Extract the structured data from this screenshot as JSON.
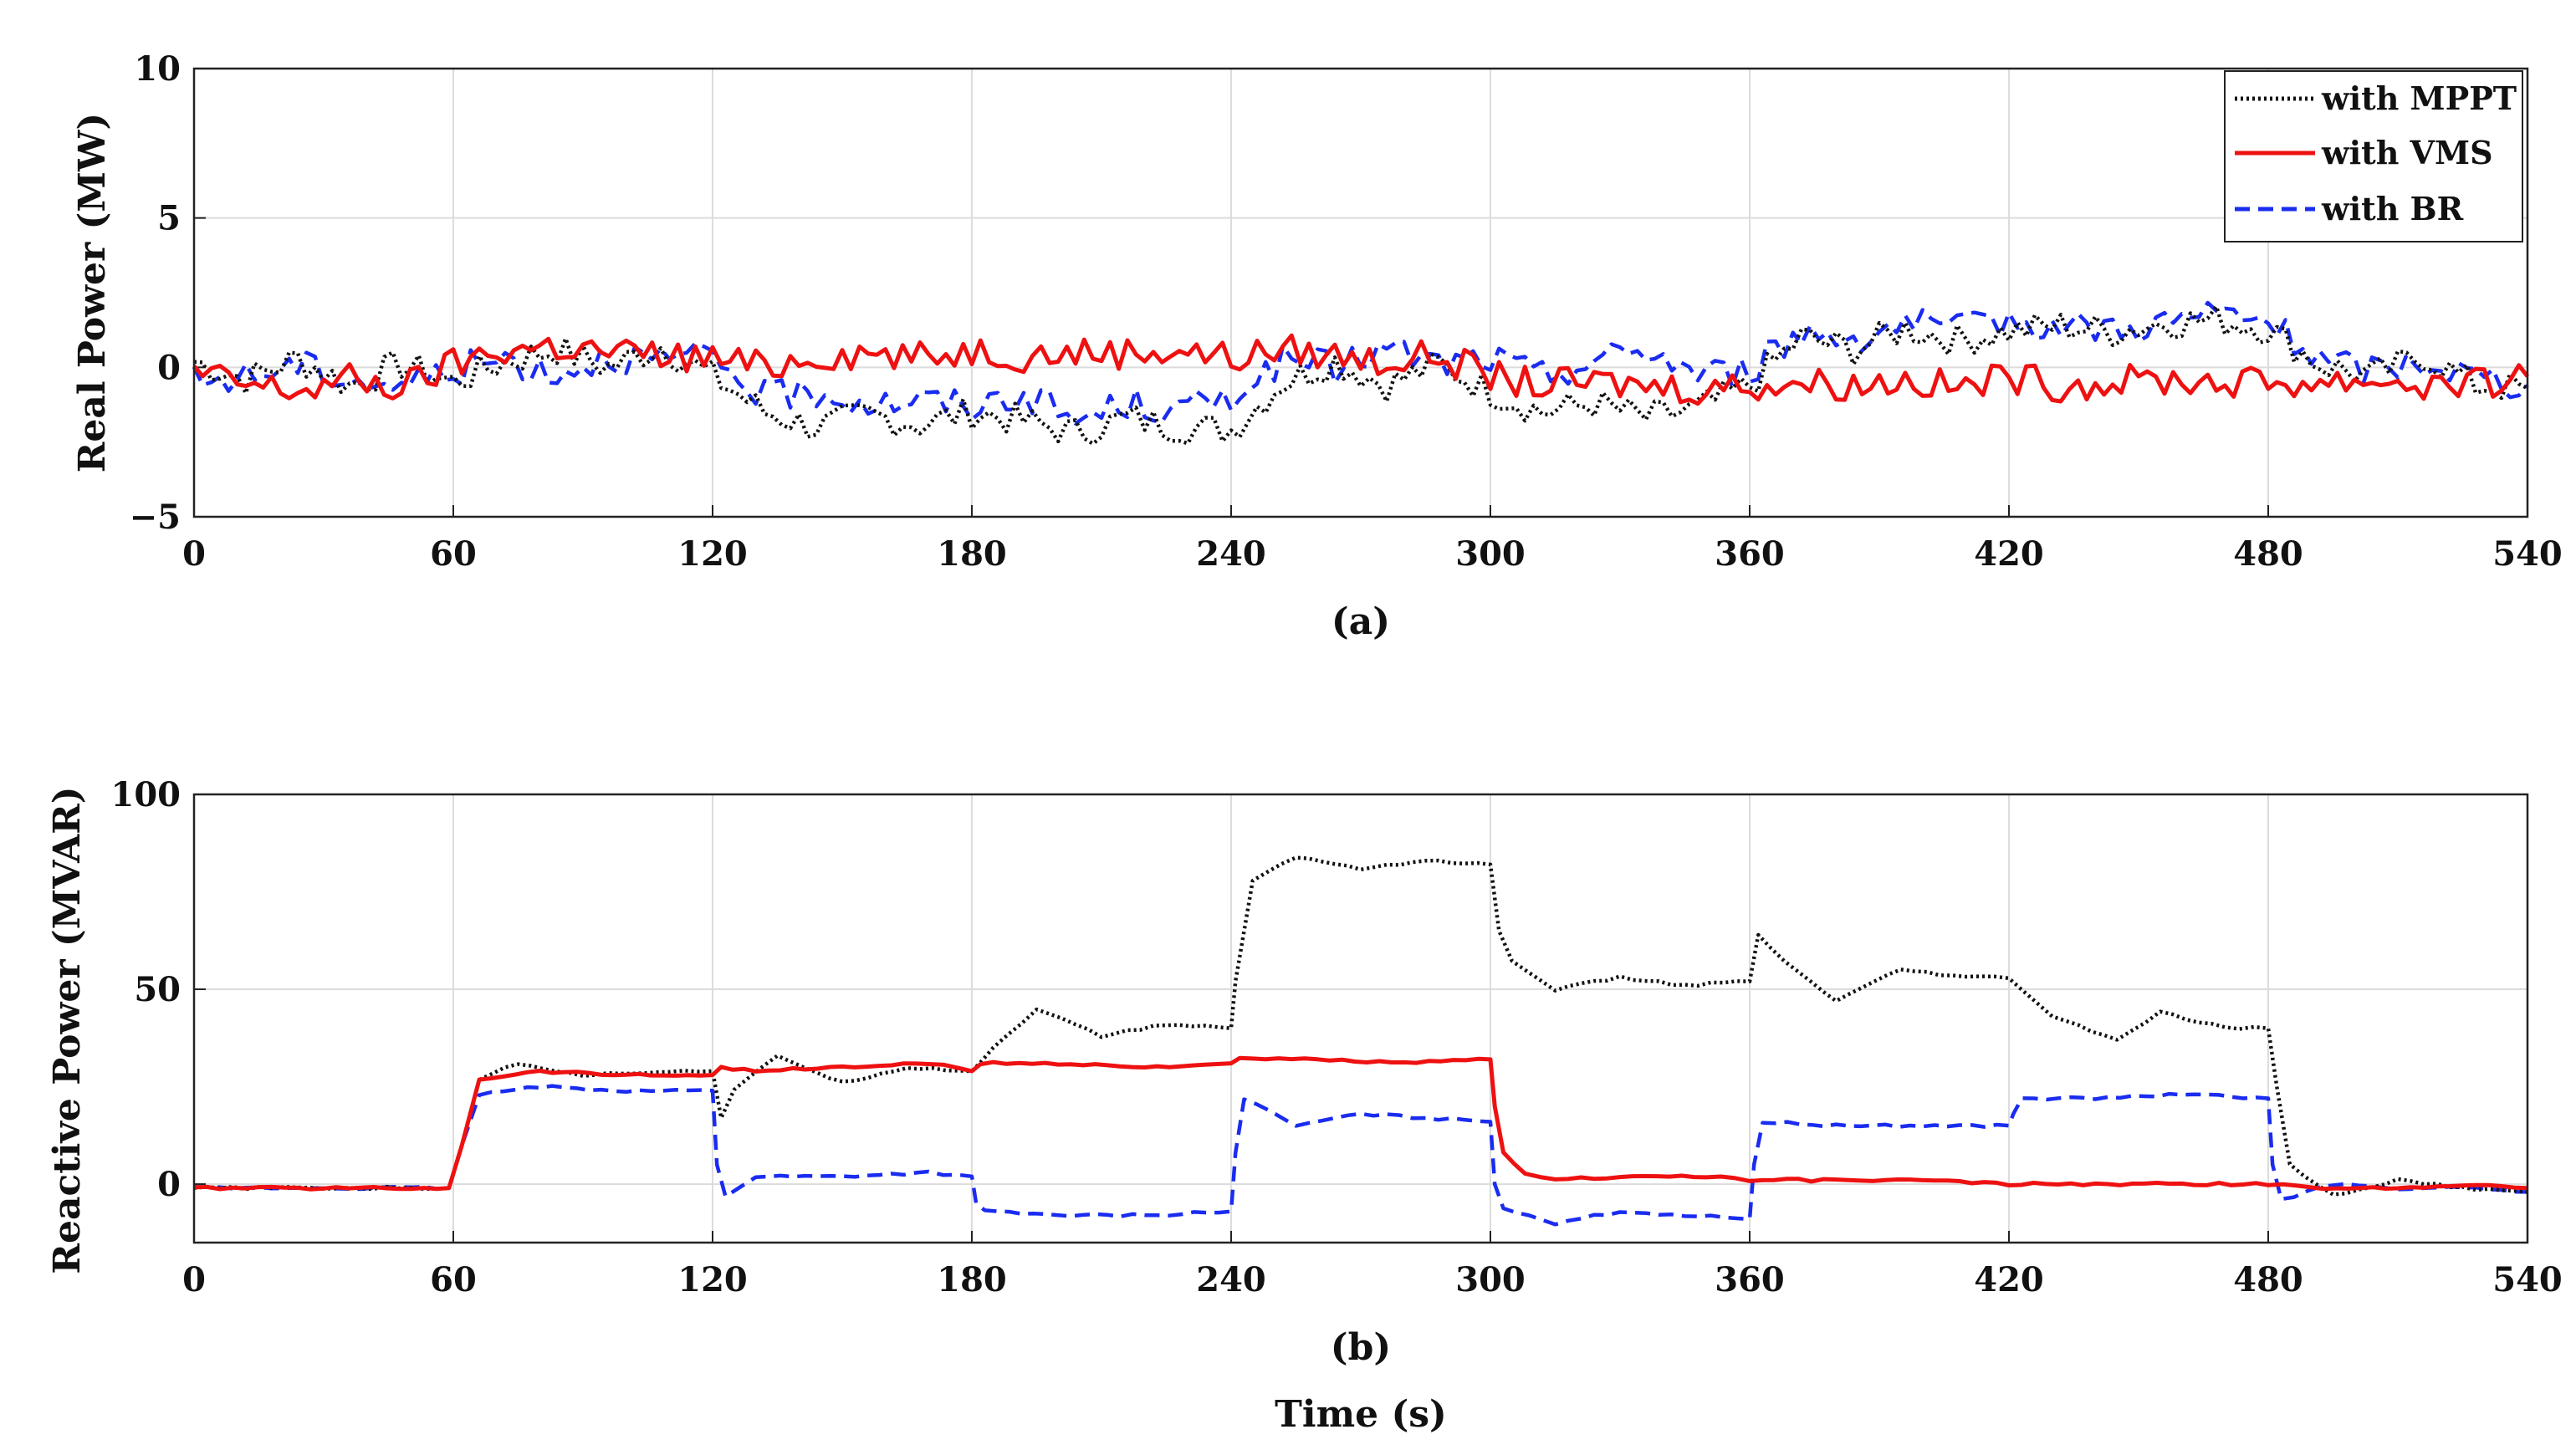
{
  "figure": {
    "caption_a": "(a)",
    "caption_b": "(b)",
    "xlabel": "Time (s)"
  },
  "legend": {
    "items": [
      {
        "label": "with MPPT",
        "color": "#111111",
        "style": "dotted"
      },
      {
        "label": "with VMS",
        "color": "#ee1111",
        "style": "solid"
      },
      {
        "label": "with BR",
        "color": "#1a2cf0",
        "style": "dashed"
      }
    ]
  },
  "chart_data": [
    {
      "type": "line",
      "title": "",
      "xlabel": "",
      "ylabel": "Real Power (MW)",
      "xlim": [
        0,
        540
      ],
      "ylim": [
        -5,
        10
      ],
      "xticks": [
        "0",
        "60",
        "120",
        "180",
        "240",
        "300",
        "360",
        "420",
        "480",
        "540"
      ],
      "yticks": [
        "−5",
        "0",
        "5",
        "10"
      ],
      "grid": true,
      "legend": "top-right",
      "series": [
        {
          "name": "with MPPT",
          "color": "#111111",
          "style": "dotted",
          "x": [
            0,
            12,
            24,
            36,
            48,
            60,
            72,
            84,
            96,
            108,
            120,
            132,
            144,
            156,
            168,
            180,
            192,
            204,
            216,
            228,
            240,
            252,
            264,
            276,
            288,
            300,
            312,
            324,
            336,
            348,
            360,
            372,
            384,
            396,
            408,
            420,
            432,
            444,
            456,
            468,
            480,
            492,
            504,
            516,
            528,
            540
          ],
          "y": [
            0.2,
            -0.4,
            0.3,
            -0.6,
            0.1,
            -0.5,
            0.2,
            0.6,
            0.0,
            0.7,
            -0.3,
            -1.5,
            -2.0,
            -1.6,
            -1.9,
            -1.5,
            -1.8,
            -2.2,
            -1.7,
            -2.0,
            -2.1,
            -0.5,
            0.2,
            -0.6,
            0.1,
            -0.8,
            -1.5,
            -1.2,
            -1.7,
            -1.4,
            -0.6,
            1.0,
            0.6,
            1.3,
            0.9,
            1.2,
            1.4,
            1.2,
            1.5,
            1.6,
            1.3,
            0.1,
            -0.3,
            0.4,
            -0.6,
            -0.7
          ]
        },
        {
          "name": "with VMS",
          "color": "#ee1111",
          "style": "solid",
          "x": [
            0,
            12,
            24,
            36,
            48,
            60,
            72,
            84,
            96,
            108,
            120,
            132,
            144,
            156,
            168,
            180,
            192,
            204,
            216,
            228,
            240,
            252,
            264,
            276,
            288,
            300,
            312,
            324,
            336,
            348,
            360,
            372,
            384,
            396,
            408,
            420,
            432,
            444,
            456,
            468,
            480,
            492,
            504,
            516,
            528,
            540
          ],
          "y": [
            -0.2,
            -0.6,
            -0.8,
            -0.4,
            -0.7,
            0.1,
            0.6,
            0.7,
            0.5,
            0.4,
            0.3,
            0.0,
            0.4,
            0.5,
            0.3,
            0.6,
            0.4,
            0.5,
            0.5,
            0.6,
            0.3,
            0.6,
            0.4,
            0.2,
            0.4,
            -0.3,
            -0.6,
            -0.5,
            -0.6,
            -0.7,
            -0.6,
            -0.5,
            -0.6,
            -0.4,
            -0.7,
            -0.3,
            -0.6,
            -0.5,
            -0.4,
            -0.5,
            -0.5,
            -0.5,
            -0.4,
            -0.6,
            -0.6,
            -0.3
          ]
        },
        {
          "name": "with BR",
          "color": "#1a2cf0",
          "style": "dashed",
          "x": [
            0,
            12,
            24,
            36,
            48,
            60,
            72,
            84,
            96,
            108,
            120,
            132,
            144,
            156,
            168,
            180,
            192,
            204,
            216,
            228,
            240,
            252,
            264,
            276,
            288,
            300,
            312,
            324,
            336,
            348,
            360,
            372,
            384,
            396,
            408,
            420,
            432,
            444,
            456,
            468,
            480,
            492,
            504,
            516,
            528,
            540
          ],
          "y": [
            -0.5,
            -0.3,
            0.1,
            -0.4,
            -0.6,
            -0.1,
            0.3,
            -0.2,
            0.4,
            0.2,
            0.3,
            -1.0,
            -0.8,
            -1.2,
            -1.1,
            -1.3,
            -0.9,
            -1.8,
            -1.2,
            -1.5,
            -0.9,
            0.2,
            0.0,
            0.6,
            0.1,
            0.3,
            -0.3,
            0.2,
            0.6,
            -0.2,
            -0.1,
            1.2,
            1.0,
            1.5,
            1.2,
            1.6,
            1.4,
            1.3,
            1.5,
            1.8,
            1.5,
            0.2,
            -0.1,
            0.2,
            -0.3,
            -0.6
          ]
        }
      ]
    },
    {
      "type": "line",
      "title": "",
      "xlabel": "Time (s)",
      "ylabel": "Reactive Power (MVAR)",
      "xlim": [
        0,
        540
      ],
      "ylim": [
        -15,
        100
      ],
      "xticks": [
        "0",
        "60",
        "120",
        "180",
        "240",
        "300",
        "360",
        "420",
        "480",
        "540"
      ],
      "yticks": [
        "0",
        "50",
        "100"
      ],
      "grid": true,
      "series": [
        {
          "name": "with MPPT",
          "color": "#111111",
          "style": "dotted",
          "x": [
            0,
            30,
            59,
            62,
            66,
            75,
            90,
            110,
            120,
            122,
            125,
            135,
            150,
            165,
            180,
            185,
            195,
            210,
            225,
            240,
            241,
            245,
            255,
            270,
            285,
            300,
            302,
            305,
            315,
            330,
            345,
            360,
            362,
            368,
            380,
            395,
            410,
            420,
            430,
            445,
            455,
            470,
            480,
            482,
            485,
            495,
            510,
            525,
            540
          ],
          "y": [
            -1,
            -1,
            -1,
            10,
            27,
            31,
            28,
            29,
            29,
            17,
            24,
            33,
            26,
            30,
            29,
            35,
            45,
            38,
            41,
            40,
            52,
            78,
            84,
            81,
            83,
            82,
            65,
            57,
            50,
            53,
            51,
            52,
            64,
            57,
            47,
            55,
            53,
            53,
            43,
            37,
            44,
            40,
            40,
            25,
            5,
            -3,
            1,
            -1,
            -2
          ]
        },
        {
          "name": "with VMS",
          "color": "#ee1111",
          "style": "solid",
          "x": [
            0,
            30,
            59,
            62,
            66,
            80,
            100,
            120,
            122,
            130,
            150,
            170,
            180,
            182,
            200,
            220,
            240,
            242,
            260,
            280,
            300,
            301,
            303,
            308,
            315,
            330,
            350,
            360,
            380,
            400,
            420,
            440,
            460,
            480,
            490,
            510,
            525,
            540
          ],
          "y": [
            -1,
            -1,
            -1,
            10,
            27,
            29,
            28,
            28,
            30,
            29,
            30,
            31,
            29,
            31,
            31,
            30,
            31,
            32,
            32,
            31,
            32,
            20,
            8,
            3,
            1,
            2,
            2,
            1,
            1,
            1,
            0,
            0,
            0,
            0,
            -1,
            -1,
            0,
            -1
          ]
        },
        {
          "name": "with BR",
          "color": "#1a2cf0",
          "style": "dashed",
          "x": [
            0,
            30,
            59,
            62,
            66,
            80,
            100,
            120,
            121,
            123,
            130,
            150,
            170,
            180,
            181,
            183,
            200,
            220,
            240,
            241,
            243,
            255,
            270,
            285,
            300,
            301,
            303,
            315,
            330,
            345,
            360,
            361,
            363,
            380,
            400,
            420,
            421,
            423,
            440,
            460,
            480,
            481,
            483,
            495,
            510,
            525,
            540
          ],
          "y": [
            -1,
            -1,
            -1,
            10,
            23,
            25,
            24,
            24,
            5,
            -3,
            2,
            2,
            3,
            2,
            -5,
            -7,
            -8,
            -8,
            -7,
            8,
            22,
            15,
            18,
            17,
            16,
            0,
            -6,
            -10,
            -7,
            -8,
            -9,
            5,
            16,
            15,
            15,
            15,
            18,
            22,
            22,
            23,
            22,
            5,
            -4,
            0,
            -1,
            -1,
            -2
          ]
        }
      ]
    }
  ]
}
